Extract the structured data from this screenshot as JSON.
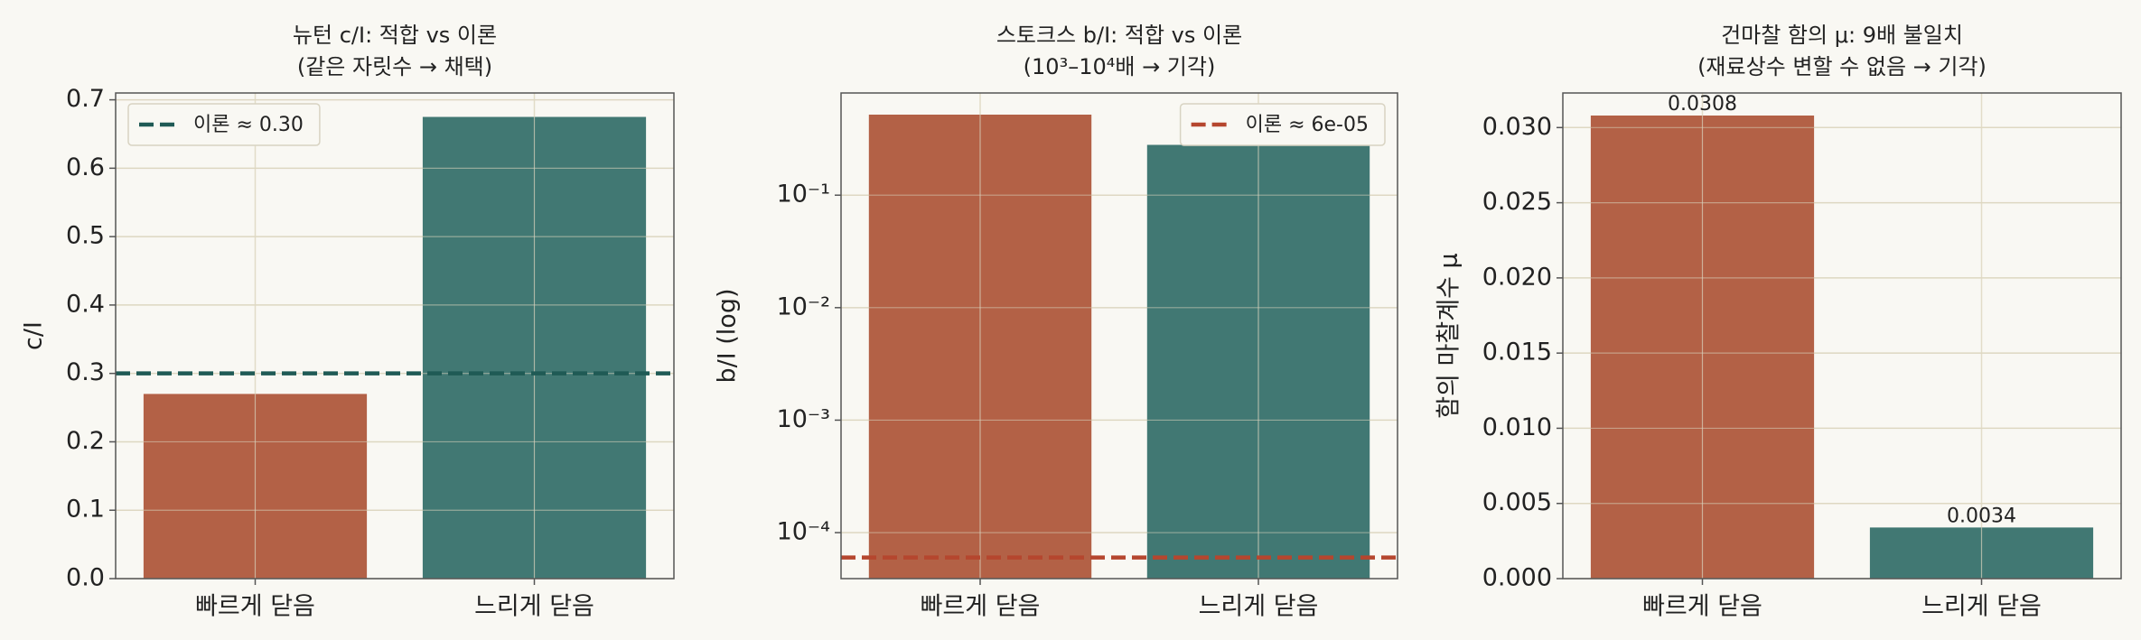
{
  "chart_data": [
    {
      "type": "bar",
      "title": "뉴턴 c/I: 적합 vs 이론",
      "subtitle": "(같은 자릿수 → 채택)",
      "ylabel": "c/I",
      "categories": [
        "빠르게 닫음",
        "느리게 닫음"
      ],
      "values": [
        0.27,
        0.675
      ],
      "colors": [
        "#b36146",
        "#417873"
      ],
      "ylim": [
        0,
        0.71
      ],
      "yticks": [
        {
          "value": 0,
          "label": "0.0"
        },
        0.1,
        0.2,
        0.3,
        0.4,
        0.5,
        0.6,
        0.7
      ],
      "reference": {
        "name": "이론 ≈ 0.30",
        "value": 0.3,
        "color": "#1f5a55"
      },
      "legend": "upper left",
      "grid": true
    },
    {
      "type": "bar",
      "title": "스토크스 b/I: 적합 vs 이론",
      "subtitle": "(10³–10⁴배 → 기각)",
      "ylabel": "b/I (log)",
      "categories": [
        "빠르게 닫음",
        "느리게 닫음"
      ],
      "values": [
        0.52,
        0.28
      ],
      "colors": [
        "#b36146",
        "#417873"
      ],
      "log_scale": true,
      "ylim": [
        3.9e-05,
        0.81
      ],
      "yticks": [
        {
          "value": 0.0001,
          "label": "10⁻⁴"
        },
        {
          "value": 0.001,
          "label": "10⁻³"
        },
        {
          "value": 0.01,
          "label": "10⁻²"
        },
        {
          "value": 0.1,
          "label": "10⁻¹"
        }
      ],
      "reference": {
        "name": "이론 ≈ 6e-05",
        "value": 6e-05,
        "color": "#b5462e"
      },
      "legend": "upper right",
      "grid": true
    },
    {
      "type": "bar",
      "title": "건마찰 함의 μ: 9배 불일치",
      "subtitle": "(재료상수 변할 수 없음 → 기각)",
      "ylabel": "함의 마찰계수 μ",
      "categories": [
        "빠르게 닫음",
        "느리게 닫음"
      ],
      "values": [
        0.0308,
        0.0034
      ],
      "colors": [
        "#b36146",
        "#417873"
      ],
      "ylim": [
        0,
        0.0323
      ],
      "yticks": [
        {
          "value": 0,
          "label": "0.000"
        },
        {
          "value": 0.005,
          "label": "0.005"
        },
        {
          "value": 0.01,
          "label": "0.010"
        },
        {
          "value": 0.015,
          "label": "0.015"
        },
        {
          "value": 0.02,
          "label": "0.020"
        },
        {
          "value": 0.025,
          "label": "0.025"
        },
        {
          "value": 0.03,
          "label": "0.030"
        }
      ],
      "data_labels": true,
      "grid": true
    }
  ]
}
